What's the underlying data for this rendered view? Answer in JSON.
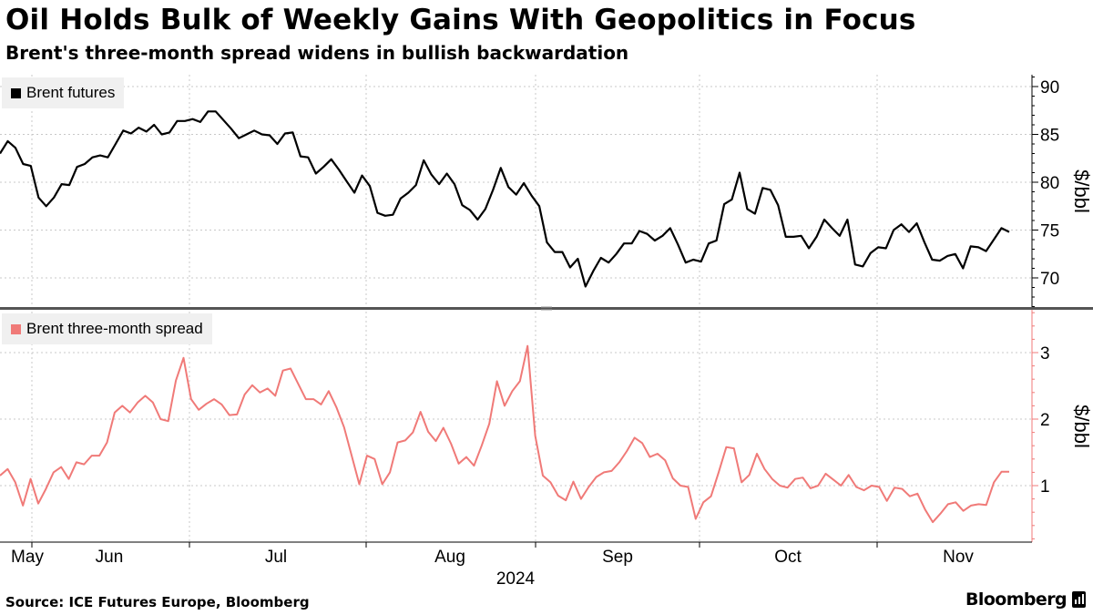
{
  "header": {
    "title": "Oil Holds Bulk of Weekly Gains With Geopolitics in Focus",
    "subtitle": "Brent's three-month spread widens in bullish backwardation"
  },
  "footer": {
    "source": "Source: ICE Futures Europe, Bloomberg",
    "brand": "Bloomberg"
  },
  "colors": {
    "futures_line": "#000000",
    "spread_line": "#f07a78",
    "grid": "#c8c8c8",
    "divider": "#555555"
  },
  "chart_data": [
    {
      "type": "line",
      "legend": "Brent futures",
      "ylabel": "$/bbl",
      "ylim": [
        66.5,
        91
      ],
      "yticks": [
        70,
        75,
        80,
        85,
        90
      ],
      "series": [
        {
          "name": "Brent futures",
          "values": [
            83.0,
            84.3,
            83.6,
            81.9,
            81.7,
            78.4,
            77.5,
            78.4,
            79.8,
            79.7,
            81.6,
            81.9,
            82.6,
            82.8,
            82.6,
            84.0,
            85.4,
            85.1,
            85.7,
            85.3,
            86.0,
            85.0,
            85.2,
            86.4,
            86.4,
            86.6,
            86.3,
            87.4,
            87.4,
            86.5,
            85.6,
            84.6,
            85.0,
            85.4,
            85.0,
            84.9,
            84.0,
            85.1,
            85.2,
            82.7,
            82.6,
            80.9,
            81.6,
            82.4,
            81.3,
            80.1,
            78.9,
            80.7,
            79.6,
            76.8,
            76.5,
            76.6,
            78.3,
            78.9,
            79.7,
            82.3,
            80.8,
            79.8,
            80.9,
            79.8,
            77.6,
            77.1,
            76.1,
            77.2,
            79.2,
            81.5,
            79.5,
            78.7,
            79.9,
            78.6,
            77.5,
            73.7,
            72.7,
            72.7,
            71.1,
            72.0,
            69.1,
            70.7,
            72.1,
            71.6,
            72.5,
            73.6,
            73.6,
            74.9,
            74.6,
            73.9,
            74.4,
            75.2,
            73.5,
            71.6,
            71.9,
            71.7,
            73.6,
            73.9,
            77.7,
            78.2,
            81.0,
            77.2,
            76.7,
            79.4,
            79.2,
            77.6,
            74.3,
            74.3,
            74.4,
            73.1,
            74.3,
            76.1,
            75.2,
            74.4,
            76.1,
            71.4,
            71.2,
            72.6,
            73.2,
            73.1,
            75.0,
            75.6,
            74.8,
            75.7,
            73.7,
            71.9,
            71.8,
            72.3,
            72.5,
            71.0,
            73.3,
            73.2,
            72.8,
            74.0,
            75.2,
            74.8
          ]
        }
      ]
    },
    {
      "type": "line",
      "legend": "Brent three-month spread",
      "ylabel": "$/bbl",
      "ylim": [
        0.15,
        3.6
      ],
      "yticks": [
        1,
        2,
        3
      ],
      "series": [
        {
          "name": "Brent three-month spread",
          "values": [
            1.15,
            1.25,
            1.05,
            0.7,
            1.1,
            0.73,
            0.95,
            1.2,
            1.28,
            1.1,
            1.35,
            1.32,
            1.45,
            1.45,
            1.65,
            2.1,
            2.2,
            2.1,
            2.25,
            2.35,
            2.25,
            2.0,
            1.97,
            2.58,
            2.92,
            2.3,
            2.14,
            2.23,
            2.3,
            2.22,
            2.06,
            2.07,
            2.37,
            2.51,
            2.4,
            2.46,
            2.35,
            2.73,
            2.76,
            2.53,
            2.3,
            2.3,
            2.22,
            2.42,
            2.18,
            1.88,
            1.45,
            1.02,
            1.45,
            1.4,
            1.02,
            1.2,
            1.65,
            1.68,
            1.8,
            2.11,
            1.81,
            1.67,
            1.87,
            1.63,
            1.33,
            1.43,
            1.3,
            1.6,
            1.93,
            2.57,
            2.2,
            2.42,
            2.57,
            3.1,
            1.75,
            1.15,
            1.05,
            0.85,
            0.78,
            1.06,
            0.8,
            0.98,
            1.13,
            1.2,
            1.22,
            1.35,
            1.52,
            1.72,
            1.64,
            1.43,
            1.48,
            1.38,
            1.11,
            1.0,
            0.98,
            0.5,
            0.75,
            0.84,
            1.2,
            1.58,
            1.56,
            1.05,
            1.16,
            1.48,
            1.25,
            1.1,
            1.0,
            0.97,
            1.1,
            1.12,
            0.96,
            1.0,
            1.18,
            1.09,
            1.0,
            1.16,
            0.98,
            0.93,
            1.0,
            0.98,
            0.77,
            0.97,
            0.95,
            0.84,
            0.88,
            0.64,
            0.45,
            0.58,
            0.72,
            0.75,
            0.62,
            0.7,
            0.72,
            0.71,
            1.05,
            1.21,
            1.21
          ]
        }
      ]
    }
  ],
  "x_axis": {
    "months": [
      "May",
      "Jun",
      "Jul",
      "Aug",
      "Sep",
      "Oct",
      "Nov"
    ],
    "year": "2024"
  }
}
